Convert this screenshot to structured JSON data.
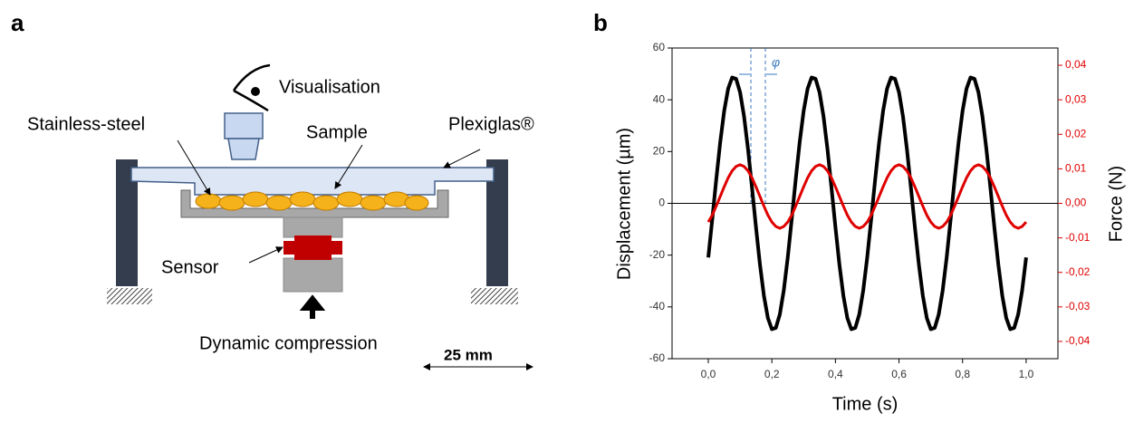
{
  "panels": {
    "a": "a",
    "b": "b"
  },
  "diagram": {
    "visualisation": "Visualisation",
    "stainless": "Stainless-steel",
    "sample": "Sample",
    "plexiglas": "Plexiglas®",
    "sensor": "Sensor",
    "compression": "Dynamic compression",
    "scale": "25 mm"
  },
  "chart_data": {
    "type": "line",
    "x_label": "Time (s)",
    "y_label": "Displacement (µm)",
    "y2_label": "Force (N)",
    "annotation": "φ",
    "xlim": [
      -0.114,
      1.1
    ],
    "ylim": [
      -60,
      60
    ],
    "y2lim": [
      -0.045,
      0.045
    ],
    "xticks": [
      {
        "value": 0,
        "label": "0,0"
      },
      {
        "value": 0.2,
        "label": "0,2"
      },
      {
        "value": 0.4,
        "label": "0,4"
      },
      {
        "value": 0.6,
        "label": "0,6"
      },
      {
        "value": 0.8,
        "label": "0,8"
      },
      {
        "value": 1,
        "label": "1,0"
      }
    ],
    "yticks": [
      60,
      40,
      20,
      0,
      -20,
      -40,
      -60
    ],
    "y2ticks": [
      {
        "value": 0.04,
        "label": "0,04"
      },
      {
        "value": 0.03,
        "label": "0,03"
      },
      {
        "value": 0.02,
        "label": "0,02"
      },
      {
        "value": 0.01,
        "label": "0,01"
      },
      {
        "value": 0,
        "label": "0,00"
      },
      {
        "value": -0.01,
        "label": "-0,01"
      },
      {
        "value": -0.02,
        "label": "-0,02"
      },
      {
        "value": -0.03,
        "label": "-0,03"
      },
      {
        "value": -0.04,
        "label": "-0,04"
      }
    ],
    "x": [
      0,
      0.0125,
      0.025,
      0.0375,
      0.05,
      0.0625,
      0.075,
      0.0875,
      0.1,
      0.1125,
      0.125,
      0.1375,
      0.15,
      0.1625,
      0.175,
      0.1875,
      0.2,
      0.2125,
      0.225,
      0.2375,
      0.25,
      0.2625,
      0.275,
      0.2875,
      0.3,
      0.3125,
      0.325,
      0.3375,
      0.35,
      0.3625,
      0.375,
      0.3875,
      0.4,
      0.4125,
      0.425,
      0.4375,
      0.45,
      0.4625,
      0.475,
      0.4875,
      0.5,
      0.5125,
      0.525,
      0.5375,
      0.55,
      0.5625,
      0.575,
      0.5875,
      0.6,
      0.6125,
      0.625,
      0.6375,
      0.65,
      0.6625,
      0.675,
      0.6875,
      0.7,
      0.7125,
      0.725,
      0.7375,
      0.75,
      0.7625,
      0.775,
      0.7875,
      0.8,
      0.8125,
      0.825,
      0.8375,
      0.85,
      0.8625,
      0.875,
      0.8875,
      0.9,
      0.9125,
      0.925,
      0.9375,
      0.95,
      0.9625,
      0.975,
      0.9875,
      1
    ],
    "series": [
      {
        "color": "#000000",
        "axis": "y",
        "values": [
          -20.9,
          -6.1,
          9.2,
          23.6,
          35.7,
          44.3,
          48.6,
          48.1,
          42.9,
          33.6,
          20.9,
          6.1,
          -9.2,
          -23.6,
          -35.7,
          -44.3,
          -48.6,
          -48.1,
          -42.9,
          -33.6,
          -20.9,
          -6.1,
          9.2,
          23.6,
          35.7,
          44.3,
          48.6,
          48.1,
          42.9,
          33.6,
          20.9,
          6.1,
          -9.2,
          -23.6,
          -35.7,
          -44.3,
          -48.6,
          -48.1,
          -42.9,
          -33.6,
          -20.9,
          -6.1,
          9.2,
          23.6,
          35.7,
          44.3,
          48.6,
          48.1,
          42.9,
          33.6,
          20.9,
          6.1,
          -9.2,
          -23.6,
          -35.7,
          -44.3,
          -48.6,
          -48.1,
          -42.9,
          -33.6,
          -20.9,
          -6.1,
          9.2,
          23.6,
          35.7,
          44.3,
          48.6,
          48.1,
          42.9,
          33.6,
          20.9,
          6.1,
          -9.2,
          -23.6,
          -35.7,
          -44.3,
          -48.6,
          -48.1,
          -42.9,
          -33.6,
          -20.9
        ]
      },
      {
        "color": "#e00000",
        "axis": "y2",
        "values": [
          -0.0054,
          -0.0034,
          -0.0008,
          0.002,
          0.0048,
          0.0074,
          0.0094,
          0.0107,
          0.0112,
          0.0107,
          0.0094,
          0.0074,
          0.0048,
          0.002,
          -0.0008,
          -0.0034,
          -0.0054,
          -0.0067,
          -0.0072,
          -0.0067,
          -0.0054,
          -0.0034,
          -0.0008,
          0.002,
          0.0048,
          0.0074,
          0.0094,
          0.0107,
          0.0112,
          0.0107,
          0.0094,
          0.0074,
          0.0048,
          0.002,
          -0.0008,
          -0.0034,
          -0.0054,
          -0.0067,
          -0.0072,
          -0.0067,
          -0.0054,
          -0.0034,
          -0.0008,
          0.002,
          0.0048,
          0.0074,
          0.0094,
          0.0107,
          0.0112,
          0.0107,
          0.0094,
          0.0074,
          0.0048,
          0.002,
          -0.0008,
          -0.0034,
          -0.0054,
          -0.0067,
          -0.0072,
          -0.0067,
          -0.0054,
          -0.0034,
          -0.0008,
          0.002,
          0.0048,
          0.0074,
          0.0094,
          0.0107,
          0.0112,
          0.0107,
          0.0094,
          0.0074,
          0.0048,
          0.002,
          -0.0008,
          -0.0034,
          -0.0054,
          -0.0067,
          -0.0072,
          -0.0067,
          -0.0054
        ]
      }
    ]
  }
}
